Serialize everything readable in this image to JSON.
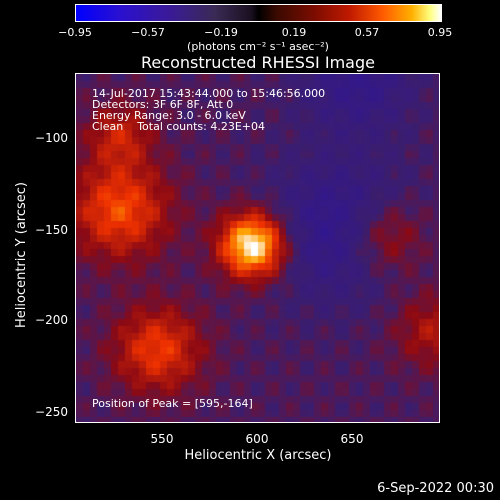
{
  "colorbar": {
    "ticks": [
      "−0.95",
      "−0.57",
      "−0.19",
      "0.19",
      "0.57",
      "0.95"
    ],
    "unit_label": "(photons cm⁻² s⁻¹ asec⁻²)"
  },
  "header": {
    "title": "Reconstructed RHESSI Image"
  },
  "info": {
    "line1": "14-Jul-2017 15:43:44.000 to 15:46:56.000",
    "line2": "Detectors: 3F 6F 8F, Att 0",
    "line3": "Energy Range: 3.0 - 6.0 keV",
    "line4": "Clean    Total counts: 4.23E+04",
    "peak": "Position of Peak = [595,-164]"
  },
  "axes": {
    "xlabel": "Heliocentric X (arcsec)",
    "ylabel": "Heliocentric Y (arcsec)",
    "xticks": [
      "550",
      "600",
      "650"
    ],
    "yticks": [
      "−100",
      "−150",
      "−200",
      "−250"
    ]
  },
  "footer": {
    "timestamp": "6-Sep-2022 00:30"
  },
  "chart_data": {
    "type": "heatmap",
    "title": "Reconstructed RHESSI Image",
    "xlabel": "Heliocentric X (arcsec)",
    "ylabel": "Heliocentric Y (arcsec)",
    "xlim": [
      502,
      694
    ],
    "ylim": [
      -260,
      -72
    ],
    "color_range": [
      -0.95,
      0.95
    ],
    "peak": [
      595,
      -164
    ],
    "sources": [
      {
        "x": 595,
        "y": -164,
        "amp": 1.0,
        "sigma": 12
      },
      {
        "x": 525,
        "y": -145,
        "amp": 0.55,
        "sigma": 18
      },
      {
        "x": 525,
        "y": -105,
        "amp": 0.35,
        "sigma": 12
      },
      {
        "x": 545,
        "y": -220,
        "amp": 0.5,
        "sigma": 16
      },
      {
        "x": 665,
        "y": -160,
        "amp": 0.35,
        "sigma": 14
      },
      {
        "x": 690,
        "y": -210,
        "amp": 0.3,
        "sigma": 14
      },
      {
        "x": 640,
        "y": -155,
        "amp": -0.35,
        "sigma": 25
      },
      {
        "x": 650,
        "y": -75,
        "amp": -0.3,
        "sigma": 20
      }
    ]
  }
}
